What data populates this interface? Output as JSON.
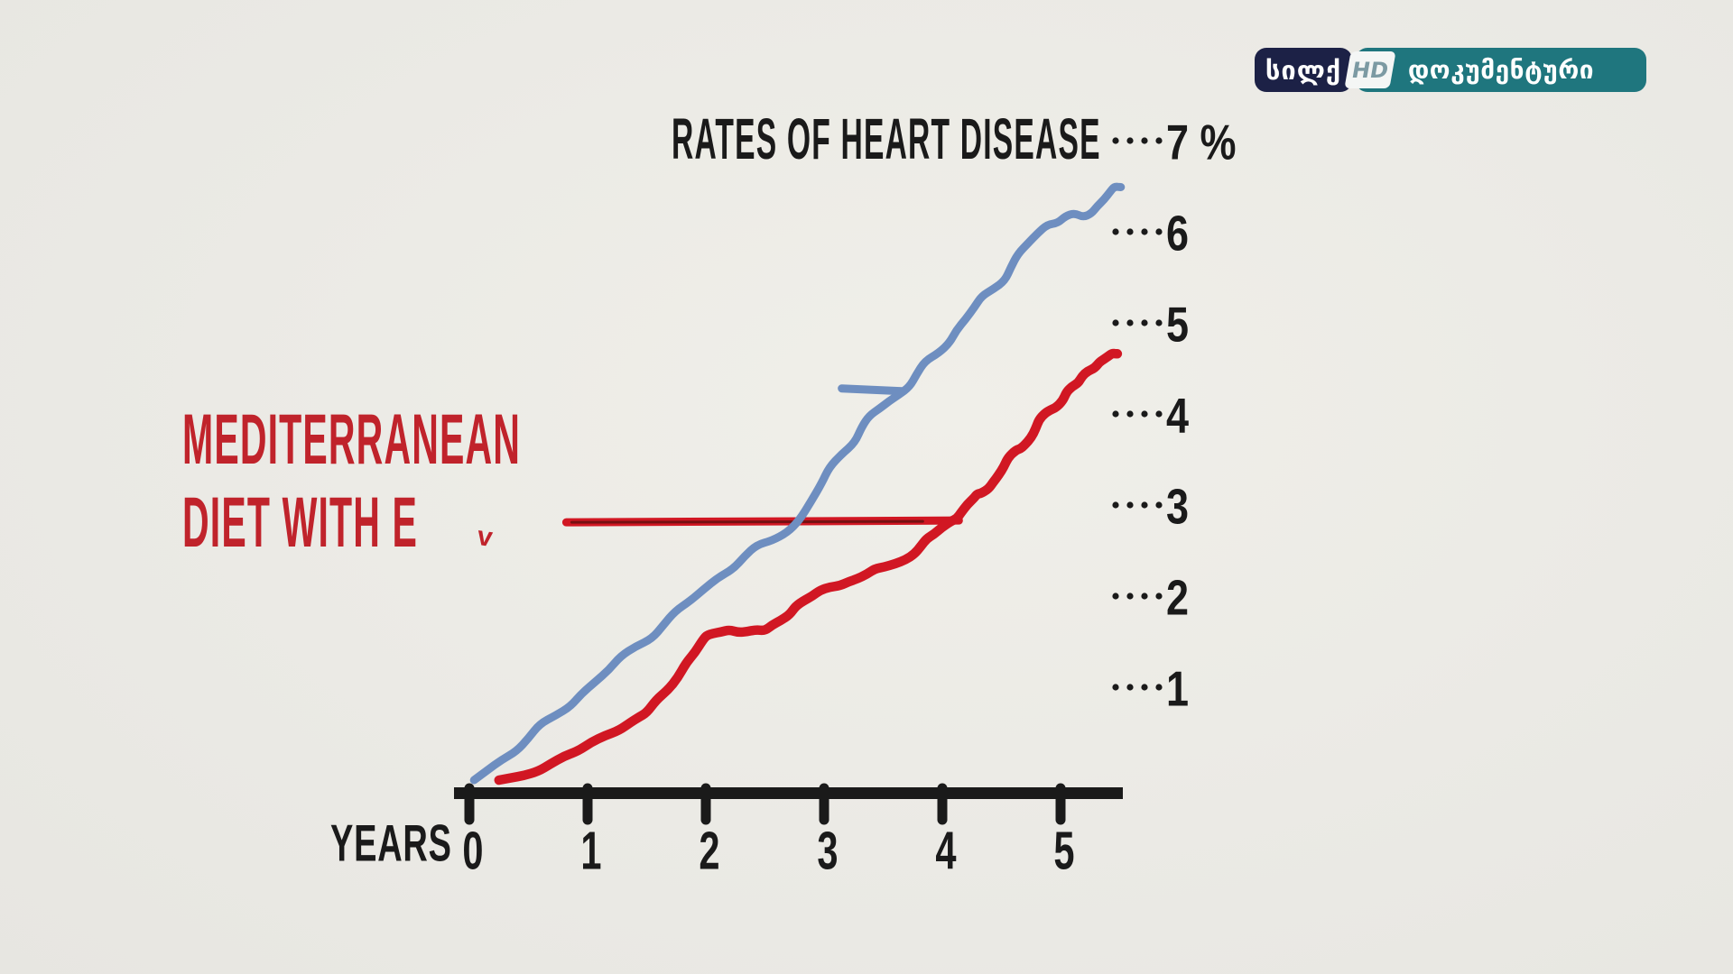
{
  "logo": {
    "channel_name": "სილქ",
    "hd_badge": "HD",
    "program_label": "დოკუმენტური",
    "navy_color": "#1c2146",
    "teal_color": "#1f767e",
    "badge_bg": "#f4f6f5",
    "hd_text_color": "#7c9aa3"
  },
  "colors": {
    "background": "#ecebe6",
    "ink": "#1a1a1a",
    "blue_line": "#6e8ec0",
    "red_line": "#d11723",
    "red_text": "#c0232b",
    "pointer_core": "#3a0d08"
  },
  "chart_data": {
    "type": "line",
    "title": "RATES OF HEART DISEASE",
    "xlabel": "YEARS",
    "ylabel": "",
    "y_unit": "%",
    "xlim": [
      0,
      5.6
    ],
    "ylim": [
      0,
      7
    ],
    "grid": false,
    "legend_position": "none",
    "x_ticks": [
      {
        "value": 0,
        "label": "0"
      },
      {
        "value": 1,
        "label": "1"
      },
      {
        "value": 2,
        "label": "2"
      },
      {
        "value": 3,
        "label": "3"
      },
      {
        "value": 4,
        "label": "4"
      },
      {
        "value": 5,
        "label": "5"
      }
    ],
    "y_ticks": [
      {
        "value": 1,
        "label": "1"
      },
      {
        "value": 2,
        "label": "2"
      },
      {
        "value": 3,
        "label": "3"
      },
      {
        "value": 4,
        "label": "4"
      },
      {
        "value": 5,
        "label": "5"
      },
      {
        "value": 6,
        "label": "6"
      },
      {
        "value": 7,
        "label": "7 %"
      }
    ],
    "series": [
      {
        "id": "blue_line",
        "label": "",
        "color": "#6e8ec0",
        "stroke_width": 9,
        "points": [
          [
            0.04,
            0.0
          ],
          [
            0.27,
            0.22
          ],
          [
            0.5,
            0.46
          ],
          [
            0.73,
            0.71
          ],
          [
            0.95,
            0.95
          ],
          [
            1.18,
            1.21
          ],
          [
            1.41,
            1.47
          ],
          [
            1.64,
            1.7
          ],
          [
            1.87,
            1.97
          ],
          [
            2.1,
            2.22
          ],
          [
            2.33,
            2.46
          ],
          [
            2.56,
            2.63
          ],
          [
            2.79,
            2.85
          ],
          [
            2.98,
            3.26
          ],
          [
            3.15,
            3.58
          ],
          [
            3.32,
            3.88
          ],
          [
            3.47,
            4.08
          ],
          [
            3.63,
            4.23
          ],
          [
            3.78,
            4.45
          ],
          [
            3.97,
            4.69
          ],
          [
            4.12,
            4.94
          ],
          [
            4.27,
            5.19
          ],
          [
            4.43,
            5.39
          ],
          [
            4.58,
            5.63
          ],
          [
            4.73,
            5.9
          ],
          [
            4.89,
            6.1
          ],
          [
            5.04,
            6.19
          ],
          [
            5.19,
            6.18
          ],
          [
            5.31,
            6.3
          ],
          [
            5.42,
            6.46
          ],
          [
            5.51,
            6.51
          ]
        ]
      },
      {
        "id": "red_line",
        "label": "MEDITERRANEAN DIET WITH E",
        "color": "#d11723",
        "stroke_width": 10.5,
        "points": [
          [
            0.25,
            0.0
          ],
          [
            0.46,
            0.05
          ],
          [
            0.69,
            0.18
          ],
          [
            0.92,
            0.32
          ],
          [
            1.15,
            0.49
          ],
          [
            1.37,
            0.64
          ],
          [
            1.5,
            0.74
          ],
          [
            1.68,
            0.99
          ],
          [
            1.83,
            1.28
          ],
          [
            1.97,
            1.53
          ],
          [
            2.06,
            1.61
          ],
          [
            2.2,
            1.65
          ],
          [
            2.35,
            1.63
          ],
          [
            2.5,
            1.64
          ],
          [
            2.63,
            1.75
          ],
          [
            2.76,
            1.91
          ],
          [
            2.9,
            2.02
          ],
          [
            3.05,
            2.12
          ],
          [
            3.21,
            2.18
          ],
          [
            3.36,
            2.26
          ],
          [
            3.51,
            2.34
          ],
          [
            3.69,
            2.42
          ],
          [
            3.82,
            2.57
          ],
          [
            3.93,
            2.7
          ],
          [
            4.07,
            2.84
          ],
          [
            4.16,
            2.94
          ],
          [
            4.27,
            3.1
          ],
          [
            4.33,
            3.15
          ],
          [
            4.43,
            3.27
          ],
          [
            4.52,
            3.44
          ],
          [
            4.62,
            3.62
          ],
          [
            4.69,
            3.67
          ],
          [
            4.79,
            3.86
          ],
          [
            4.87,
            4.03
          ],
          [
            4.96,
            4.09
          ],
          [
            5.05,
            4.26
          ],
          [
            5.15,
            4.36
          ],
          [
            5.23,
            4.49
          ],
          [
            5.33,
            4.59
          ],
          [
            5.4,
            4.65
          ],
          [
            5.48,
            4.68
          ]
        ]
      }
    ],
    "annotations": {
      "red_label_line1": "MEDITERRANEAN",
      "red_label_line2": "DIET WITH E",
      "red_label_partial": "v",
      "red_pointer": {
        "x1": 0.82,
        "y1": 2.83,
        "x2": 4.14,
        "y2": 2.85
      },
      "blue_pointer": {
        "x1": 3.15,
        "y1": 4.3,
        "x2": 3.66,
        "y2": 4.27
      }
    }
  }
}
